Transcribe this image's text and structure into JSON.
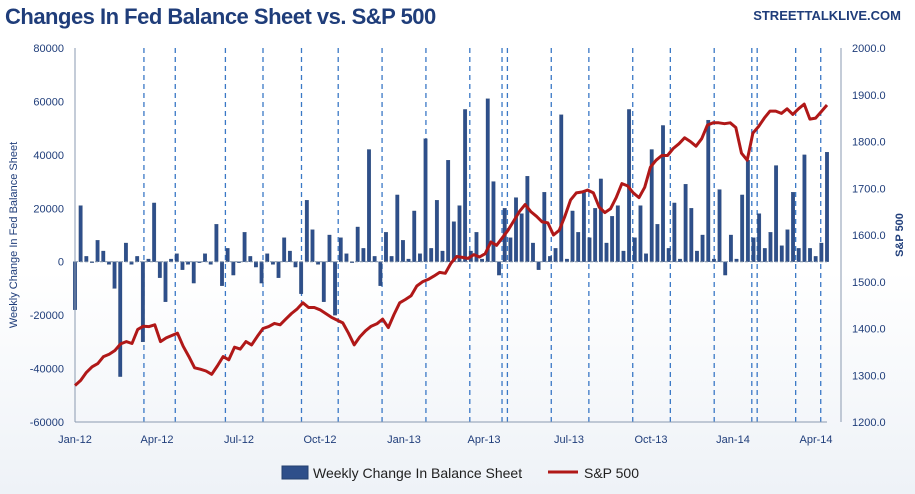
{
  "header": {
    "title": "Changes In Fed Balance Sheet vs. S&P 500",
    "site": "STREETTALKLIVE.COM"
  },
  "chart_data": {
    "type": "bar+line",
    "title": "Changes In Fed Balance Sheet vs. S&P 500",
    "ylabel_left": "Weekly Change In Fed Balance  Sheet",
    "ylabel_right": "S&P 500",
    "ylim_left": [
      -60000,
      80000
    ],
    "ylim_right": [
      1200,
      2000
    ],
    "yticks_left": [
      "80000",
      "60000",
      "40000",
      "20000",
      "0",
      "-20000",
      "-40000",
      "-60000"
    ],
    "yticks_right": [
      "2000.0",
      "1900.0",
      "1800.0",
      "1700.0",
      "1600.0",
      "1500.0",
      "1400.0",
      "1300.0",
      "1200.0"
    ],
    "xticks": [
      "Jan-12",
      "Apr-12",
      "Jul-12",
      "Oct-12",
      "Jan-13",
      "Apr-13",
      "Jul-13",
      "Oct-13",
      "Jan-14",
      "Apr-14"
    ],
    "x_range": [
      "2012-01-04",
      "2014-04-23"
    ],
    "grid": false,
    "legend_position": "bottom",
    "colors": {
      "bars": "#2e4f8a",
      "line": "#b01818",
      "dashed": "#3a78c6",
      "axis_text": "#1f3d7a"
    },
    "series": [
      {
        "name": "Weekly Change In Balance Sheet",
        "kind": "bar",
        "values": [
          -18000,
          21000,
          2000,
          0,
          8000,
          4000,
          -1000,
          -10000,
          -43000,
          7000,
          -1000,
          2000,
          -30000,
          1000,
          22000,
          -6000,
          -15000,
          1000,
          3000,
          -3000,
          -1000,
          -8000,
          0,
          3000,
          -1000,
          14000,
          -9000,
          5000,
          -5000,
          0,
          11000,
          2000,
          -2000,
          -8000,
          3000,
          -1000,
          -6000,
          9000,
          4000,
          -2000,
          -12000,
          23000,
          12000,
          -1000,
          -15000,
          10000,
          -20000,
          9000,
          3000,
          0,
          13000,
          5000,
          42000,
          2000,
          -9000,
          11000,
          2000,
          25000,
          8000,
          1000,
          19000,
          3000,
          46000,
          5000,
          23000,
          4000,
          38000,
          15000,
          21000,
          57000,
          4000,
          11000,
          1000,
          61000,
          30000,
          -5000,
          20000,
          9000,
          24000,
          18000,
          32000,
          7000,
          -3000,
          26000,
          2000,
          5000,
          55000,
          1000,
          19000,
          11000,
          26000,
          9000,
          20000,
          31000,
          7000,
          17000,
          21000,
          4000,
          57000,
          9000,
          21000,
          3000,
          42000,
          14000,
          51000,
          5000,
          22000,
          1000,
          29000,
          20000,
          4000,
          10000,
          53000,
          1000,
          27000,
          -5000,
          10000,
          1000,
          25000,
          38000,
          9000,
          18000,
          5000,
          11000,
          36000,
          6000,
          12000,
          26000,
          5000,
          40000,
          5000,
          2000,
          7000,
          41000
        ]
      },
      {
        "name": "S&P 500",
        "kind": "line",
        "values": [
          1278,
          1289,
          1306,
          1318,
          1325,
          1340,
          1345,
          1353,
          1367,
          1372,
          1368,
          1398,
          1405,
          1404,
          1408,
          1372,
          1380,
          1385,
          1390,
          1362,
          1340,
          1316,
          1313,
          1309,
          1302,
          1320,
          1340,
          1333,
          1360,
          1356,
          1372,
          1365,
          1383,
          1400,
          1404,
          1411,
          1408,
          1420,
          1432,
          1442,
          1455,
          1445,
          1445,
          1440,
          1432,
          1424,
          1418,
          1412,
          1390,
          1365,
          1382,
          1395,
          1405,
          1410,
          1420,
          1402,
          1430,
          1455,
          1462,
          1470,
          1491,
          1500,
          1505,
          1512,
          1520,
          1518,
          1540,
          1554,
          1552,
          1550,
          1558,
          1553,
          1560,
          1585,
          1578,
          1594,
          1610,
          1630,
          1650,
          1665,
          1650,
          1640,
          1628,
          1626,
          1600,
          1610,
          1640,
          1675,
          1690,
          1692,
          1696,
          1690,
          1660,
          1648,
          1656,
          1680,
          1710,
          1705,
          1690,
          1680,
          1702,
          1745,
          1760,
          1770,
          1770,
          1785,
          1795,
          1808,
          1800,
          1790,
          1806,
          1835,
          1840,
          1840,
          1838,
          1840,
          1830,
          1775,
          1760,
          1818,
          1832,
          1850,
          1865,
          1865,
          1860,
          1870,
          1858,
          1870,
          1880,
          1848,
          1850,
          1864,
          1878
        ]
      }
    ],
    "dashed_lines": [
      "2012-03-21",
      "2012-04-25",
      "2012-06-20",
      "2012-08-01",
      "2012-09-13",
      "2012-10-24",
      "2012-12-12",
      "2013-01-30",
      "2013-03-20",
      "2013-04-25",
      "2013-05-01",
      "2013-06-19",
      "2013-07-31",
      "2013-09-18",
      "2013-10-30",
      "2013-12-18",
      "2014-01-29",
      "2014-02-04",
      "2014-03-19",
      "2014-04-16"
    ]
  },
  "legend": {
    "bar_label": "Weekly Change In Balance Sheet",
    "line_label": "S&P 500"
  }
}
